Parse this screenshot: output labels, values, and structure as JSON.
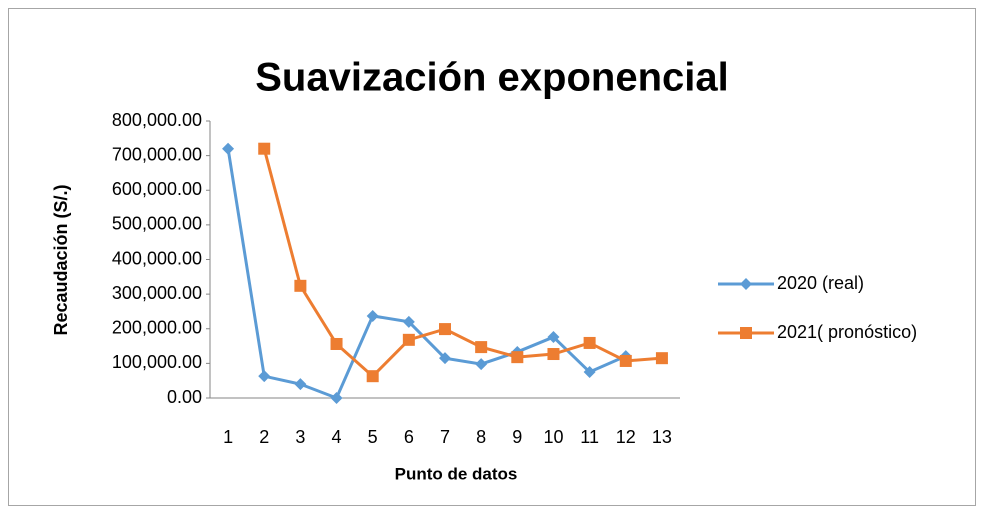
{
  "chart_data": {
    "type": "line",
    "title": "Suavización exponencial",
    "x_label": "Punto de datos",
    "y_label": "Recaudación (S/.)",
    "categories": [
      "1",
      "2",
      "3",
      "4",
      "5",
      "6",
      "7",
      "8",
      "9",
      "10",
      "11",
      "12",
      "13"
    ],
    "series": [
      {
        "name": "2020 (real)",
        "color": "#5b9bd5",
        "marker": "diamond",
        "values": [
          720000,
          63000,
          40000,
          0,
          237000,
          220000,
          115000,
          98000,
          133000,
          176000,
          75000,
          121000,
          null
        ]
      },
      {
        "name": "2021( pronóstico)",
        "color": "#ed7d31",
        "marker": "square",
        "values": [
          null,
          720000,
          324000,
          156000,
          63000,
          168000,
          199000,
          147000,
          118000,
          127000,
          159000,
          107000,
          115000
        ]
      }
    ],
    "ylim": [
      0,
      800000
    ],
    "yticks": [
      {
        "value": 0,
        "label": "0.00"
      },
      {
        "value": 100000,
        "label": "100,000.00"
      },
      {
        "value": 200000,
        "label": "200,000.00"
      },
      {
        "value": 300000,
        "label": "300,000.00"
      },
      {
        "value": 400000,
        "label": "400,000.00"
      },
      {
        "value": 500000,
        "label": "500,000.00"
      },
      {
        "value": 600000,
        "label": "600,000.00"
      },
      {
        "value": 700000,
        "label": "700,000.00"
      },
      {
        "value": 800000,
        "label": "800,000.00"
      }
    ],
    "grid": false,
    "legend": "right"
  }
}
